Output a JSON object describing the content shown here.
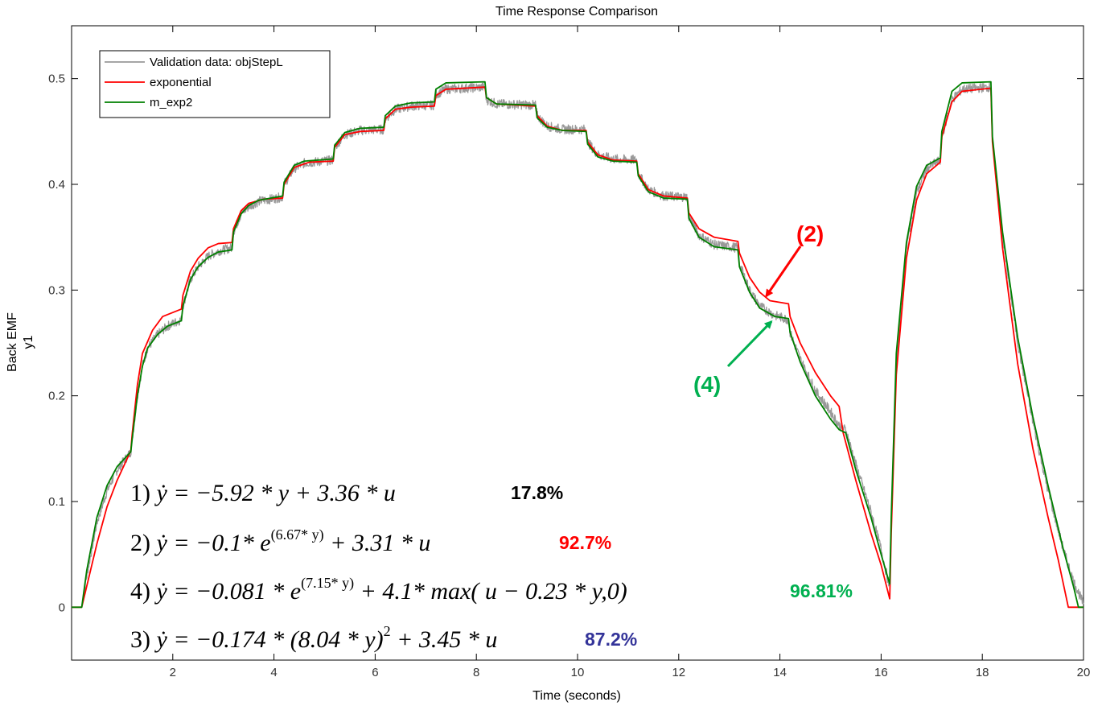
{
  "chart_data": {
    "type": "line",
    "title": "Time Response Comparison",
    "xlabel": "Time (seconds)",
    "ylabel_line1": "Back EMF",
    "ylabel_line2": "y1",
    "xlim": [
      0,
      20
    ],
    "ylim": [
      -0.05,
      0.55
    ],
    "xticks": [
      2,
      4,
      6,
      8,
      10,
      12,
      14,
      16,
      18,
      20
    ],
    "yticks": [
      0,
      0.1,
      0.2,
      0.3,
      0.4,
      0.5
    ],
    "grid": false,
    "legend_position": "top-left",
    "series": [
      {
        "name": "Validation data: objStepL",
        "color": "#999999",
        "noisy": true,
        "points": [
          [
            0,
            0
          ],
          [
            0.2,
            0
          ],
          [
            0.3,
            0.03
          ],
          [
            0.5,
            0.08
          ],
          [
            0.7,
            0.11
          ],
          [
            0.9,
            0.13
          ],
          [
            1.17,
            0.147
          ],
          [
            1.2,
            0.16
          ],
          [
            1.3,
            0.2
          ],
          [
            1.4,
            0.228
          ],
          [
            1.5,
            0.245
          ],
          [
            1.7,
            0.258
          ],
          [
            1.9,
            0.266
          ],
          [
            2.17,
            0.272
          ],
          [
            2.2,
            0.285
          ],
          [
            2.35,
            0.31
          ],
          [
            2.5,
            0.322
          ],
          [
            2.7,
            0.332
          ],
          [
            2.9,
            0.337
          ],
          [
            3.17,
            0.34
          ],
          [
            3.2,
            0.355
          ],
          [
            3.35,
            0.372
          ],
          [
            3.5,
            0.379
          ],
          [
            3.7,
            0.384
          ],
          [
            4.17,
            0.388
          ],
          [
            4.2,
            0.4
          ],
          [
            4.4,
            0.415
          ],
          [
            4.6,
            0.42
          ],
          [
            5.17,
            0.423
          ],
          [
            5.2,
            0.435
          ],
          [
            5.4,
            0.447
          ],
          [
            5.7,
            0.451
          ],
          [
            6.17,
            0.452
          ],
          [
            6.2,
            0.462
          ],
          [
            6.4,
            0.471
          ],
          [
            6.7,
            0.474
          ],
          [
            7.17,
            0.475
          ],
          [
            7.2,
            0.485
          ],
          [
            7.4,
            0.49
          ],
          [
            8.17,
            0.492
          ],
          [
            8.2,
            0.48
          ],
          [
            8.4,
            0.476
          ],
          [
            9.17,
            0.475
          ],
          [
            9.2,
            0.465
          ],
          [
            9.4,
            0.455
          ],
          [
            9.7,
            0.452
          ],
          [
            10.17,
            0.452
          ],
          [
            10.2,
            0.44
          ],
          [
            10.4,
            0.428
          ],
          [
            10.7,
            0.424
          ],
          [
            11.17,
            0.423
          ],
          [
            11.2,
            0.41
          ],
          [
            11.4,
            0.395
          ],
          [
            11.7,
            0.389
          ],
          [
            12.17,
            0.388
          ],
          [
            12.2,
            0.37
          ],
          [
            12.4,
            0.352
          ],
          [
            12.7,
            0.343
          ],
          [
            13.17,
            0.34
          ],
          [
            13.2,
            0.325
          ],
          [
            13.4,
            0.3
          ],
          [
            13.6,
            0.285
          ],
          [
            13.9,
            0.276
          ],
          [
            14.17,
            0.272
          ],
          [
            14.2,
            0.26
          ],
          [
            14.4,
            0.235
          ],
          [
            14.7,
            0.205
          ],
          [
            15.0,
            0.185
          ],
          [
            15.17,
            0.172
          ],
          [
            15.3,
            0.168
          ],
          [
            15.5,
            0.135
          ],
          [
            15.8,
            0.09
          ],
          [
            16.0,
            0.055
          ],
          [
            16.17,
            0.018
          ],
          [
            16.2,
            0.075
          ],
          [
            16.3,
            0.23
          ],
          [
            16.5,
            0.34
          ],
          [
            16.7,
            0.392
          ],
          [
            16.9,
            0.415
          ],
          [
            17.17,
            0.423
          ],
          [
            17.2,
            0.445
          ],
          [
            17.4,
            0.48
          ],
          [
            17.6,
            0.49
          ],
          [
            18.17,
            0.492
          ],
          [
            18.2,
            0.44
          ],
          [
            18.4,
            0.35
          ],
          [
            18.7,
            0.25
          ],
          [
            19.0,
            0.175
          ],
          [
            19.3,
            0.11
          ],
          [
            19.6,
            0.055
          ],
          [
            19.8,
            0.025
          ],
          [
            20,
            0.003
          ]
        ]
      },
      {
        "name": "exponential",
        "color": "#ff0000",
        "noisy": false,
        "points": [
          [
            0,
            0
          ],
          [
            0.2,
            0
          ],
          [
            0.3,
            0.02
          ],
          [
            0.5,
            0.06
          ],
          [
            0.7,
            0.095
          ],
          [
            0.9,
            0.12
          ],
          [
            1.17,
            0.148
          ],
          [
            1.2,
            0.165
          ],
          [
            1.3,
            0.21
          ],
          [
            1.4,
            0.24
          ],
          [
            1.6,
            0.262
          ],
          [
            1.8,
            0.275
          ],
          [
            2.17,
            0.282
          ],
          [
            2.2,
            0.295
          ],
          [
            2.35,
            0.318
          ],
          [
            2.5,
            0.33
          ],
          [
            2.7,
            0.34
          ],
          [
            2.9,
            0.344
          ],
          [
            3.17,
            0.345
          ],
          [
            3.2,
            0.358
          ],
          [
            3.35,
            0.375
          ],
          [
            3.5,
            0.382
          ],
          [
            3.8,
            0.386
          ],
          [
            4.17,
            0.387
          ],
          [
            4.2,
            0.4
          ],
          [
            4.4,
            0.416
          ],
          [
            4.7,
            0.421
          ],
          [
            5.17,
            0.422
          ],
          [
            5.2,
            0.435
          ],
          [
            5.4,
            0.447
          ],
          [
            5.7,
            0.45
          ],
          [
            6.17,
            0.451
          ],
          [
            6.2,
            0.462
          ],
          [
            6.4,
            0.471
          ],
          [
            6.7,
            0.473
          ],
          [
            7.17,
            0.474
          ],
          [
            7.2,
            0.484
          ],
          [
            7.4,
            0.49
          ],
          [
            8.17,
            0.492
          ],
          [
            8.2,
            0.482
          ],
          [
            8.4,
            0.476
          ],
          [
            9.17,
            0.474
          ],
          [
            9.2,
            0.465
          ],
          [
            9.4,
            0.455
          ],
          [
            9.7,
            0.451
          ],
          [
            10.17,
            0.451
          ],
          [
            10.2,
            0.44
          ],
          [
            10.4,
            0.428
          ],
          [
            10.7,
            0.423
          ],
          [
            11.17,
            0.422
          ],
          [
            11.2,
            0.41
          ],
          [
            11.4,
            0.395
          ],
          [
            11.7,
            0.389
          ],
          [
            12.17,
            0.387
          ],
          [
            12.2,
            0.373
          ],
          [
            12.4,
            0.358
          ],
          [
            12.7,
            0.35
          ],
          [
            13.17,
            0.346
          ],
          [
            13.2,
            0.335
          ],
          [
            13.4,
            0.312
          ],
          [
            13.6,
            0.298
          ],
          [
            13.8,
            0.29
          ],
          [
            14.17,
            0.287
          ],
          [
            14.2,
            0.275
          ],
          [
            14.4,
            0.25
          ],
          [
            14.7,
            0.222
          ],
          [
            15.0,
            0.2
          ],
          [
            15.17,
            0.19
          ],
          [
            15.25,
            0.165
          ],
          [
            15.5,
            0.12
          ],
          [
            15.8,
            0.07
          ],
          [
            16.0,
            0.04
          ],
          [
            16.17,
            0.008
          ],
          [
            16.2,
            0.07
          ],
          [
            16.3,
            0.22
          ],
          [
            16.5,
            0.33
          ],
          [
            16.7,
            0.385
          ],
          [
            16.9,
            0.41
          ],
          [
            17.17,
            0.421
          ],
          [
            17.2,
            0.445
          ],
          [
            17.4,
            0.478
          ],
          [
            17.6,
            0.488
          ],
          [
            18.17,
            0.491
          ],
          [
            18.2,
            0.44
          ],
          [
            18.4,
            0.34
          ],
          [
            18.7,
            0.23
          ],
          [
            19.0,
            0.15
          ],
          [
            19.3,
            0.085
          ],
          [
            19.5,
            0.045
          ],
          [
            19.7,
            0
          ],
          [
            20,
            0
          ]
        ]
      },
      {
        "name": "m_exp2",
        "color": "#008000",
        "noisy": false,
        "points": [
          [
            0,
            0
          ],
          [
            0.2,
            0
          ],
          [
            0.3,
            0.035
          ],
          [
            0.5,
            0.085
          ],
          [
            0.7,
            0.115
          ],
          [
            0.9,
            0.133
          ],
          [
            1.17,
            0.147
          ],
          [
            1.2,
            0.16
          ],
          [
            1.3,
            0.2
          ],
          [
            1.4,
            0.228
          ],
          [
            1.5,
            0.245
          ],
          [
            1.7,
            0.258
          ],
          [
            1.9,
            0.266
          ],
          [
            2.17,
            0.271
          ],
          [
            2.2,
            0.285
          ],
          [
            2.35,
            0.31
          ],
          [
            2.5,
            0.322
          ],
          [
            2.7,
            0.331
          ],
          [
            2.9,
            0.336
          ],
          [
            3.17,
            0.338
          ],
          [
            3.2,
            0.355
          ],
          [
            3.35,
            0.372
          ],
          [
            3.5,
            0.38
          ],
          [
            3.7,
            0.385
          ],
          [
            4.17,
            0.389
          ],
          [
            4.2,
            0.402
          ],
          [
            4.4,
            0.418
          ],
          [
            4.6,
            0.422
          ],
          [
            5.17,
            0.424
          ],
          [
            5.2,
            0.437
          ],
          [
            5.4,
            0.449
          ],
          [
            5.7,
            0.453
          ],
          [
            6.17,
            0.454
          ],
          [
            6.2,
            0.465
          ],
          [
            6.4,
            0.474
          ],
          [
            6.7,
            0.477
          ],
          [
            7.17,
            0.478
          ],
          [
            7.2,
            0.49
          ],
          [
            7.4,
            0.496
          ],
          [
            8.17,
            0.497
          ],
          [
            8.2,
            0.482
          ],
          [
            8.4,
            0.476
          ],
          [
            9.17,
            0.475
          ],
          [
            9.2,
            0.463
          ],
          [
            9.4,
            0.454
          ],
          [
            9.7,
            0.451
          ],
          [
            10.17,
            0.45
          ],
          [
            10.2,
            0.438
          ],
          [
            10.4,
            0.426
          ],
          [
            10.7,
            0.422
          ],
          [
            11.17,
            0.421
          ],
          [
            11.2,
            0.408
          ],
          [
            11.4,
            0.393
          ],
          [
            11.7,
            0.387
          ],
          [
            12.17,
            0.386
          ],
          [
            12.2,
            0.368
          ],
          [
            12.4,
            0.35
          ],
          [
            12.7,
            0.341
          ],
          [
            13.17,
            0.338
          ],
          [
            13.2,
            0.322
          ],
          [
            13.4,
            0.298
          ],
          [
            13.6,
            0.283
          ],
          [
            13.9,
            0.275
          ],
          [
            14.17,
            0.273
          ],
          [
            14.2,
            0.26
          ],
          [
            14.4,
            0.232
          ],
          [
            14.7,
            0.2
          ],
          [
            15.0,
            0.178
          ],
          [
            15.17,
            0.168
          ],
          [
            15.3,
            0.165
          ],
          [
            15.5,
            0.13
          ],
          [
            15.8,
            0.085
          ],
          [
            16.0,
            0.05
          ],
          [
            16.17,
            0.022
          ],
          [
            16.2,
            0.085
          ],
          [
            16.3,
            0.24
          ],
          [
            16.5,
            0.345
          ],
          [
            16.7,
            0.398
          ],
          [
            16.9,
            0.418
          ],
          [
            17.17,
            0.425
          ],
          [
            17.2,
            0.45
          ],
          [
            17.4,
            0.488
          ],
          [
            17.6,
            0.496
          ],
          [
            18.17,
            0.497
          ],
          [
            18.2,
            0.445
          ],
          [
            18.4,
            0.355
          ],
          [
            18.7,
            0.255
          ],
          [
            19.0,
            0.18
          ],
          [
            19.3,
            0.115
          ],
          [
            19.6,
            0.055
          ],
          [
            19.8,
            0.02
          ],
          [
            19.9,
            0
          ],
          [
            20,
            0
          ]
        ]
      }
    ],
    "equations": [
      {
        "prefix": "1)",
        "lhs": "ẏ = −5.92 * y + 3.36 * u",
        "fit": "17.8%",
        "fit_color": "#000000"
      },
      {
        "prefix": "2)",
        "lhs": "ẏ = −0.1* e",
        "sup": "(6.67* y)",
        "rhs": " + 3.31 * u",
        "fit": "92.7%",
        "fit_color": "#ff0000"
      },
      {
        "prefix": "4)",
        "lhs": "ẏ = −0.081 * e",
        "sup": "(7.15* y)",
        "rhs": " + 4.1* max( u − 0.23 * y,0)",
        "fit": "96.81%",
        "fit_color": "#00b050"
      },
      {
        "prefix": "3)",
        "lhs": "ẏ = −0.174 * (8.04 * y)",
        "sup": "2",
        "rhs": " + 3.45 * u",
        "fit": "87.2%",
        "fit_color": "#333399"
      }
    ],
    "annotations": [
      {
        "label": "(2)",
        "color": "#ff0000",
        "point": [
          13.65,
          0.292
        ]
      },
      {
        "label": "(4)",
        "color": "#00b050",
        "point": [
          13.8,
          0.274
        ]
      }
    ]
  }
}
